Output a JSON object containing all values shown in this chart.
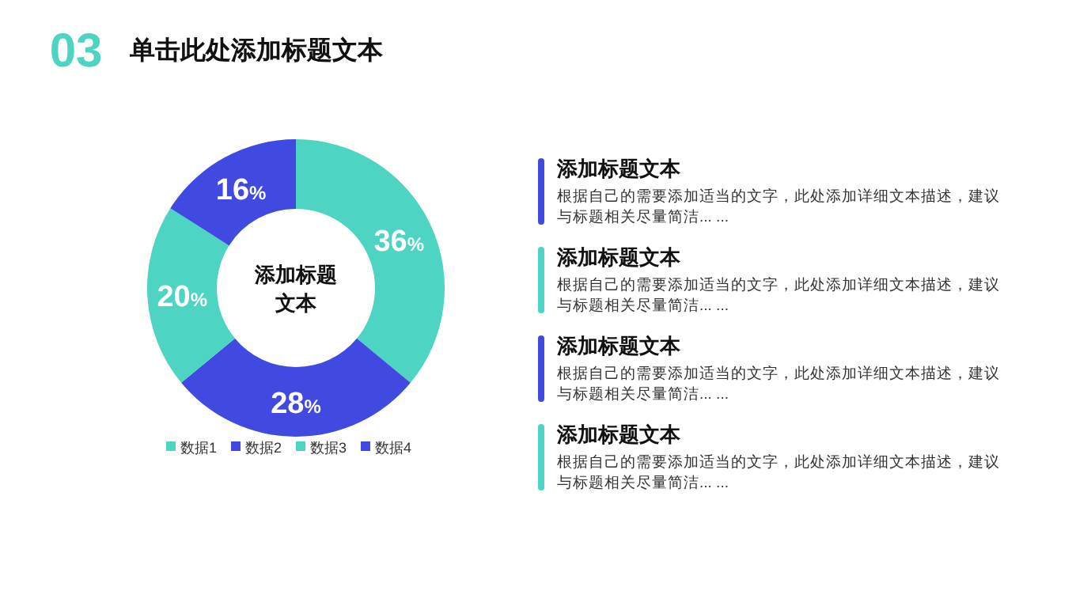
{
  "chart_data": {
    "type": "donut",
    "title": "单击此处添加标题文本",
    "categories": [
      "数据1",
      "数据2",
      "数据3",
      "数据4"
    ],
    "values": [
      36,
      28,
      20,
      16
    ],
    "colors": [
      "#4dd4c2",
      "#4049e0",
      "#4dd4c2",
      "#4049e0"
    ],
    "value_labels": [
      "36%",
      "28%",
      "20%",
      "16%"
    ],
    "legend": "bottom",
    "annotations": [
      "03",
      "添加标题文本",
      "添加标题文本",
      "根据自己的需要添加适当的文字，此处添加详细文本描述，建议与标题相关尽量简洁... ...",
      "添加标题文本",
      "根据自己的需要添加适当的文字，此处添加详细文本描述，建议与标题相关尽量简洁... ...",
      "添加标题文本",
      "根据自己的需要添加适当的文字，此处添加详细文本描述，建议与标题相关尽量简洁... ...",
      "添加标题文本",
      "根据自己的需要添加适当的文字，此处添加详细文本描述，建议与标题相关尽量简洁... ..."
    ]
  }
}
